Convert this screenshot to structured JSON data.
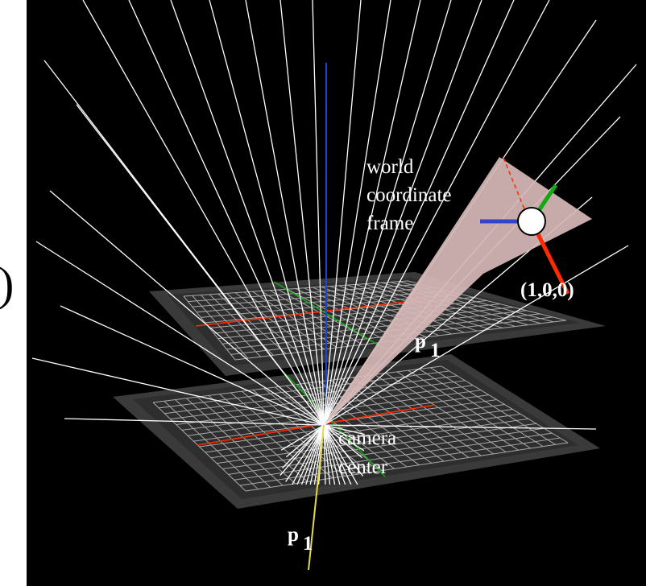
{
  "labels": {
    "world_frame": [
      "world",
      "coordinate",
      "frame"
    ],
    "point_label": "(1,0,0)",
    "p1_upper_main": "p",
    "p1_upper_sub": "1",
    "camera_center": [
      "camera",
      "center"
    ],
    "p1_lower_main": "p",
    "p1_lower_sub": "1",
    "left_paren": ")"
  },
  "colors": {
    "background": "#000000",
    "ray": "#ffffff",
    "grid": "#a8a8a8",
    "plane": "#3a3a3a",
    "x_axis": "#ff2a00",
    "y_axis": "#11aa11",
    "z_axis": "#2244cc",
    "wedge": "#d6b8b8",
    "optical_axis": "#e6d84a"
  }
}
